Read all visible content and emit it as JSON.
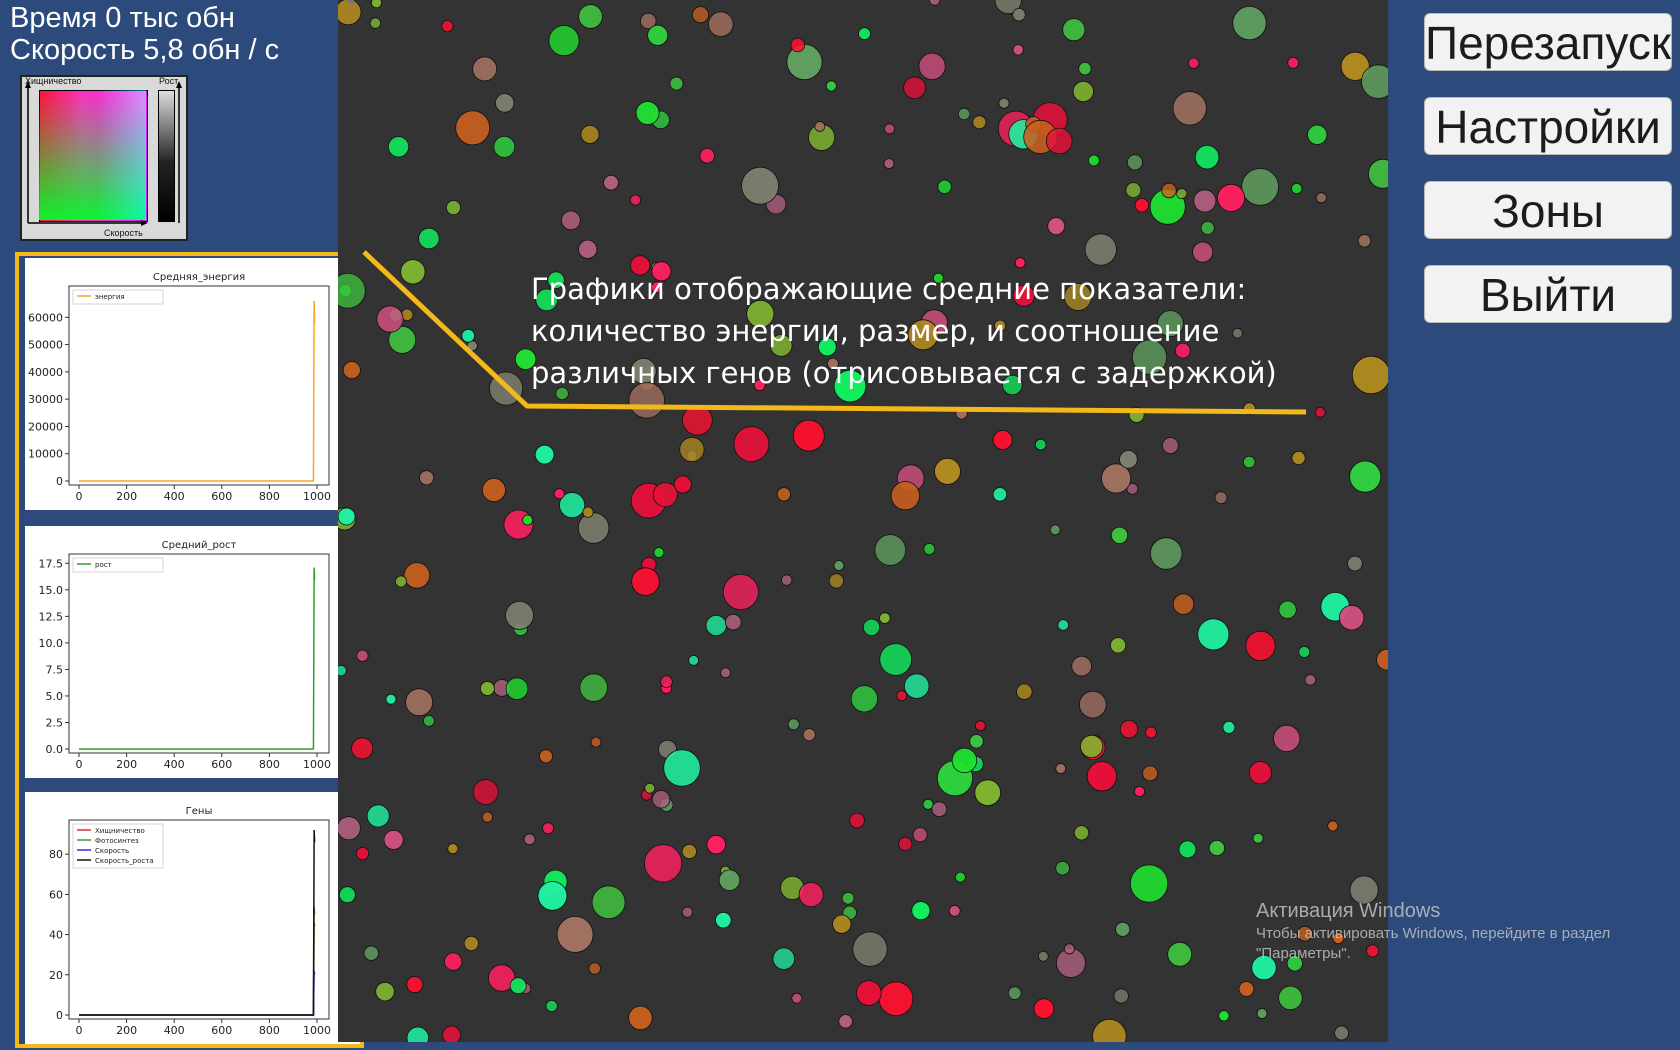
{
  "stats": {
    "time": "Время 0 тыс обн",
    "speed": "Скорость 5,8 обн / с"
  },
  "legend": {
    "x_label": "Скорость",
    "y_label": "Хищничество",
    "bar_label": "Рост"
  },
  "menu": {
    "restart": "Перезапуск",
    "settings": "Настройки",
    "zones": "Зоны",
    "exit": "Выйти"
  },
  "annotation": {
    "text": "Графики отображающие средние показатели: количество энергии, размер, и соотношение различных генов (отрисовывается с задержкой)",
    "color": "#f3b81a"
  },
  "watermark": {
    "title": "Активация Windows",
    "line1": "Чтобы активировать Windows, перейдите в раздел",
    "line2": "\"Параметры\"."
  },
  "chart_data": [
    {
      "type": "line",
      "title": "Средняя_энергия",
      "xlim": [
        0,
        1000
      ],
      "ylim": [
        0,
        70000
      ],
      "xticks": [
        0,
        200,
        400,
        600,
        800,
        1000
      ],
      "yticks": [
        0,
        10000,
        20000,
        30000,
        40000,
        50000,
        60000
      ],
      "legend": "top-left",
      "series": [
        {
          "name": "энергия",
          "color": "#f5a623",
          "x": [
            0,
            985,
            988,
            990
          ],
          "y": [
            0,
            0,
            66000,
            58000
          ]
        }
      ]
    },
    {
      "type": "line",
      "title": "Средний_рост",
      "xlim": [
        0,
        1000
      ],
      "ylim": [
        0,
        18
      ],
      "xticks": [
        0,
        200,
        400,
        600,
        800,
        1000
      ],
      "yticks": [
        0.0,
        2.5,
        5.0,
        7.5,
        10.0,
        12.5,
        15.0,
        17.5
      ],
      "legend": "top-left",
      "series": [
        {
          "name": "рост",
          "color": "#2ca02c",
          "x": [
            0,
            985,
            988,
            990
          ],
          "y": [
            0,
            0,
            17.1,
            16.0
          ]
        }
      ]
    },
    {
      "type": "line",
      "title": "Гены",
      "xlim": [
        0,
        1000
      ],
      "ylim": [
        0,
        95
      ],
      "xticks": [
        0,
        200,
        400,
        600,
        800,
        1000
      ],
      "yticks": [
        0,
        20,
        40,
        60,
        80
      ],
      "legend": "top-left",
      "series": [
        {
          "name": "Хищничество",
          "color": "#e03030",
          "x": [
            0,
            985,
            988,
            990
          ],
          "y": [
            0,
            0,
            46,
            44
          ]
        },
        {
          "name": "Фотосинтез",
          "color": "#2ca02c",
          "x": [
            0,
            985,
            988,
            990
          ],
          "y": [
            0,
            0,
            54,
            50
          ]
        },
        {
          "name": "Скорость",
          "color": "#3030e0",
          "x": [
            0,
            985,
            988,
            990
          ],
          "y": [
            0,
            0,
            22,
            20
          ]
        },
        {
          "name": "Скорость_роста",
          "color": "#111111",
          "x": [
            0,
            985,
            988,
            990
          ],
          "y": [
            0,
            0,
            92,
            86
          ]
        }
      ]
    }
  ]
}
